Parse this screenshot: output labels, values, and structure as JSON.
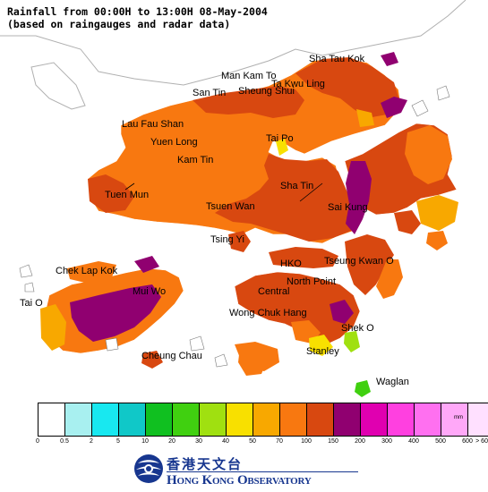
{
  "title": {
    "line1": "Rainfall from 00:00H to 13:00H 08-May-2004",
    "line2": "(based on raingauges and radar data)"
  },
  "places": {
    "sha_tau_kok": "Sha Tau Kok",
    "man_kam_to": "Man Kam To",
    "ta_kwu_ling": "Ta Kwu Ling",
    "san_tin": "San Tin",
    "sheung_shui": "Sheung Shui",
    "lau_fau_shan": "Lau Fau Shan",
    "yuen_long": "Yuen Long",
    "tai_po": "Tai Po",
    "kam_tin": "Kam Tin",
    "sha_tin": "Sha Tin",
    "tuen_mun": "Tuen Mun",
    "tsuen_wan": "Tsuen Wan",
    "sai_kung": "Sai Kung",
    "tsing_yi": "Tsing Yi",
    "hko": "HKO",
    "tseung_kwan_o": "Tseung Kwan O",
    "chek_lap_kok": "Chek Lap Kok",
    "north_point": "North Point",
    "mui_wo": "Mui Wo",
    "central": "Central",
    "tai_o": "Tai O",
    "wong_chuk_hang": "Wong Chuk Hang",
    "shek_o": "Shek O",
    "stanley": "Stanley",
    "cheung_chau": "Cheung Chau",
    "waglan": "Waglan"
  },
  "legend": {
    "unit": "mm",
    "colors": [
      "#ffffff",
      "#a8f0f0",
      "#18e8f0",
      "#10c8c8",
      "#10c020",
      "#40d010",
      "#a0e010",
      "#f8e000",
      "#f8a800",
      "#f87810",
      "#d84810",
      "#900070",
      "#e000b0",
      "#ff40e0",
      "#ff70f0",
      "#ffa8f8",
      "#ffe0ff"
    ],
    "ticks": [
      "0",
      "0.5",
      "2",
      "5",
      "10",
      "20",
      "30",
      "40",
      "50",
      "70",
      "100",
      "150",
      "200",
      "300",
      "400",
      "500",
      "600",
      "> 600"
    ]
  },
  "logo": {
    "chinese": "香港天文台",
    "english": "Hong Kong Observatory",
    "brand_color": "#17368f"
  }
}
